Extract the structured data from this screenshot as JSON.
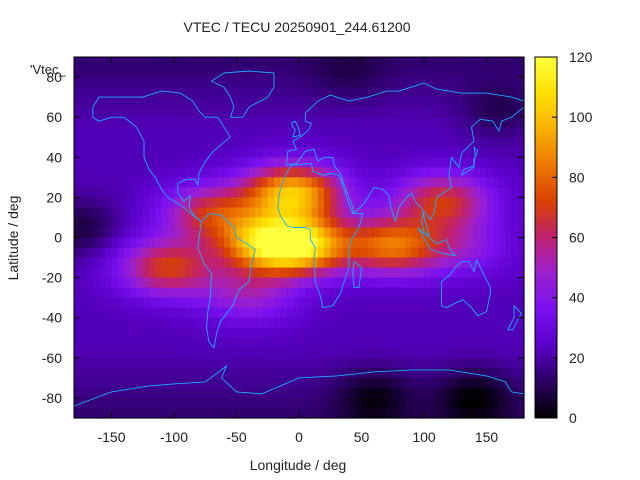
{
  "chart_data": {
    "type": "heatmap",
    "title": "VTEC / TECU 20250901_244.61200",
    "xlabel": "Longitude / deg",
    "ylabel": "Latitude / deg",
    "legend_label": "'Vtec_",
    "xlim": [
      -180,
      180
    ],
    "ylim": [
      -90,
      90
    ],
    "x_ticks": [
      -150,
      -100,
      -50,
      0,
      50,
      100,
      150
    ],
    "y_ticks": [
      -80,
      -60,
      -40,
      -20,
      0,
      20,
      40,
      60,
      80
    ],
    "x_tick_labels": [
      "-150",
      "-100",
      "-50",
      "0",
      "50",
      "100",
      "150"
    ],
    "y_tick_labels": [
      "-80",
      "-60",
      "-40",
      "-20",
      "0",
      "20",
      "40",
      "60",
      "80"
    ],
    "colorbar": {
      "range": [
        0,
        120
      ],
      "ticks": [
        0,
        20,
        40,
        60,
        80,
        100,
        120
      ],
      "tick_labels": [
        "0",
        "20",
        "40",
        "60",
        "80",
        "100",
        "120"
      ],
      "palette": [
        "#000000",
        "#2a0060",
        "#5a00c8",
        "#7a10f0",
        "#9a20d0",
        "#c02070",
        "#d84000",
        "#ee7800",
        "#f8b000",
        "#ffe000",
        "#ffff40"
      ]
    },
    "background_vtec": 22,
    "peaks": [
      {
        "lon": -5,
        "lat": 22,
        "value": 100
      },
      {
        "lon": -25,
        "lat": -3,
        "value": 92
      },
      {
        "lon": 5,
        "lat": -4,
        "value": 88
      },
      {
        "lon": 75,
        "lat": -4,
        "value": 80
      },
      {
        "lon": 115,
        "lat": 18,
        "value": 68
      },
      {
        "lon": -105,
        "lat": -15,
        "value": 70
      },
      {
        "lon": -70,
        "lat": 12,
        "value": 66
      },
      {
        "lon": -40,
        "lat": -28,
        "value": 48
      },
      {
        "lon": 130,
        "lat": -5,
        "value": 42
      }
    ],
    "lows": [
      {
        "lon": -175,
        "lat": 5,
        "value": 8
      },
      {
        "lon": 140,
        "lat": -80,
        "value": 6
      },
      {
        "lon": 60,
        "lat": -80,
        "value": 8
      },
      {
        "lon": 160,
        "lat": 62,
        "value": 12
      },
      {
        "lon": 40,
        "lat": 82,
        "value": 16
      }
    ],
    "coastline_color": "#1ab0ff"
  }
}
